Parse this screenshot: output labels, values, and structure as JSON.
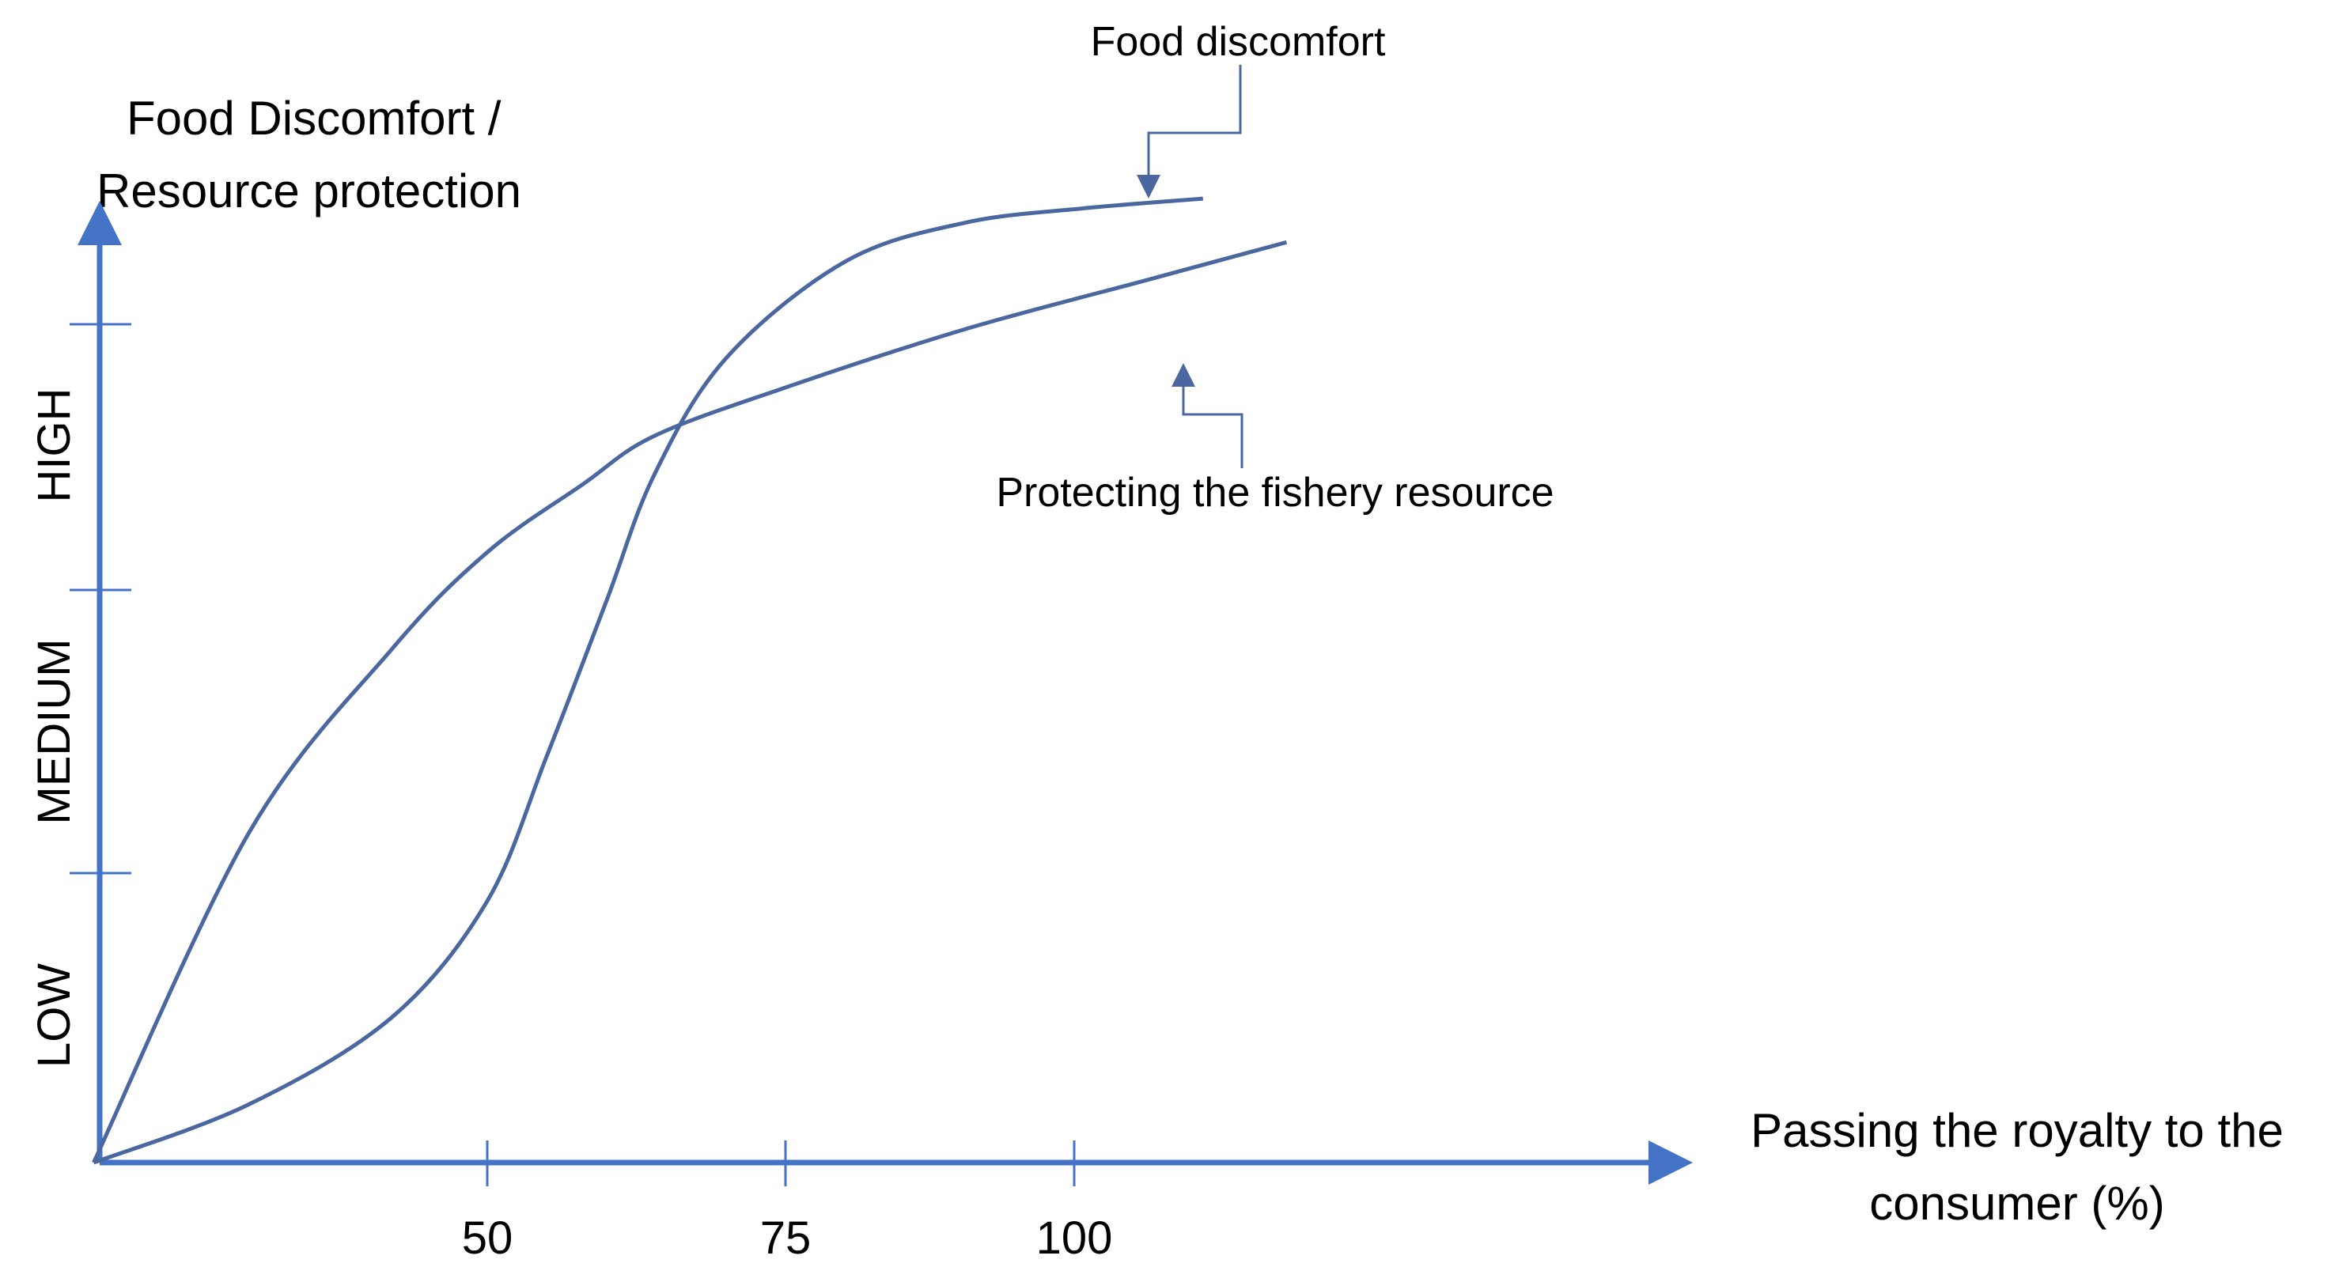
{
  "chart_data": {
    "type": "line",
    "title": "",
    "ylabel_lines": [
      "Food Discomfort /",
      "Resource protection"
    ],
    "xlabel_lines": [
      "Passing the royalty to the",
      "consumer (%)"
    ],
    "x_ticks": [
      50,
      75,
      100
    ],
    "y_levels": [
      "LOW",
      "MEDIUM",
      "HIGH"
    ],
    "y_range": [
      0,
      100
    ],
    "colors": {
      "axis": "#4472C4",
      "line": "#4A67A0",
      "text": "#000000"
    },
    "series": [
      {
        "name": "Food discomfort",
        "x": [
          17,
          30,
          42,
          50,
          55,
          60,
          64,
          70,
          80,
          90,
          100,
          110
        ],
        "y": [
          0,
          6,
          15,
          27,
          42,
          58,
          71,
          83,
          93,
          97,
          98.5,
          99.5
        ]
      },
      {
        "name": "Protecting the fishery resource",
        "x": [
          17,
          30,
          42,
          50,
          58,
          64,
          75,
          90,
          105,
          117
        ],
        "y": [
          0,
          34,
          53,
          63,
          70,
          75,
          80,
          86,
          91,
          95
        ]
      }
    ],
    "annotations": [
      {
        "text": "Food discomfort",
        "series": "Food discomfort"
      },
      {
        "text": "Protecting the fishery resource",
        "series": "Protecting the fishery resource"
      }
    ]
  }
}
